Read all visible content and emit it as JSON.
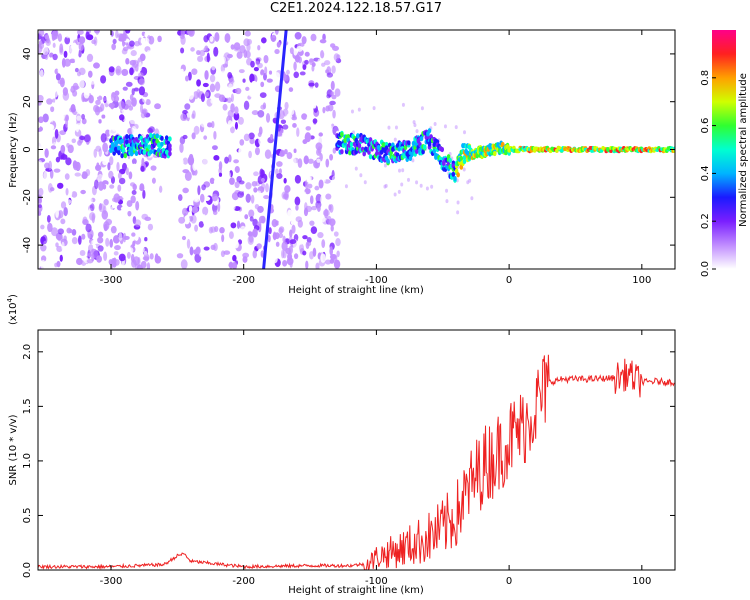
{
  "title": "C2E1.2024.122.18.57.G17",
  "chart_data": [
    {
      "type": "heatmap",
      "xlabel": "Height of straight line (km)",
      "ylabel": "Frequency (Hz)",
      "xlim": [
        -355,
        125
      ],
      "ylim": [
        -50,
        50
      ],
      "xticks": [
        -300,
        -200,
        -100,
        0,
        100
      ],
      "yticks": [
        -40,
        -20,
        0,
        20,
        40
      ],
      "colorbar": {
        "label": "Normalized spectral amplitude",
        "range": [
          0.0,
          1.0
        ],
        "ticks": [
          0.0,
          0.2,
          0.4,
          0.6,
          0.8
        ],
        "colors": [
          "#ffffff",
          "#c08cff",
          "#7a1fff",
          "#1a1aff",
          "#00b4ff",
          "#00ffd0",
          "#30ff30",
          "#d0ff00",
          "#ffa000",
          "#ff2020",
          "#ff0088"
        ]
      },
      "ridge": [
        {
          "x": -300,
          "y": 1
        },
        {
          "x": -270,
          "y": 2
        },
        {
          "x": -255,
          "y": 1
        },
        {
          "x": -130,
          "y": 3
        },
        {
          "x": -110,
          "y": 2
        },
        {
          "x": -90,
          "y": -2
        },
        {
          "x": -75,
          "y": 0
        },
        {
          "x": -60,
          "y": 4
        },
        {
          "x": -50,
          "y": -4
        },
        {
          "x": -40,
          "y": -10
        },
        {
          "x": -35,
          "y": -2
        },
        {
          "x": -20,
          "y": -1
        },
        {
          "x": -5,
          "y": 1
        },
        {
          "x": 0,
          "y": 0
        },
        {
          "x": 50,
          "y": 0
        },
        {
          "x": 100,
          "y": 0
        },
        {
          "x": 125,
          "y": 0
        }
      ],
      "streak": {
        "x_start": -185,
        "y_start": -50,
        "x_end": -168,
        "y_end": 50
      }
    },
    {
      "type": "line",
      "xlabel": "Height of straight line (km)",
      "ylabel": "SNR (10 * v/v)",
      "y_multiplier": "(x10^4)",
      "y_multiplier_base": "(x10",
      "y_multiplier_exp": "4",
      "y_multiplier_close": ")",
      "xlim": [
        -355,
        125
      ],
      "ylim": [
        0,
        2.2
      ],
      "xticks": [
        -300,
        -200,
        -100,
        0,
        100
      ],
      "yticks": [
        0.0,
        0.5,
        1.0,
        1.5,
        2.0
      ],
      "series": [
        {
          "color": "#ee2222",
          "x": [
            -355,
            -300,
            -260,
            -250,
            -245,
            -240,
            -200,
            -150,
            -120,
            -105,
            -100,
            -80,
            -60,
            -50,
            -40,
            -30,
            -20,
            -10,
            0,
            10,
            20,
            30,
            40,
            60,
            80,
            90,
            95,
            100,
            110,
            125
          ],
          "y": [
            0.03,
            0.03,
            0.05,
            0.13,
            0.15,
            0.08,
            0.03,
            0.04,
            0.04,
            0.06,
            0.12,
            0.2,
            0.3,
            0.38,
            0.5,
            0.75,
            0.95,
            1.05,
            1.2,
            1.3,
            1.5,
            1.72,
            1.75,
            1.75,
            1.76,
            1.8,
            1.75,
            1.72,
            1.73,
            1.72
          ]
        }
      ]
    }
  ]
}
